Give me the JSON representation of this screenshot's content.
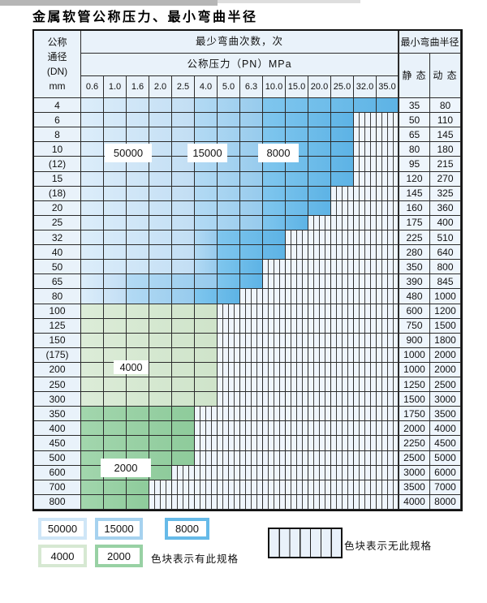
{
  "title": "金属软管公称压力、最小弯曲半径",
  "table": {
    "header": {
      "dn_label_lines": [
        "公称",
        "通径",
        "(DN)",
        "mm"
      ],
      "bend_times_label": "最少弯曲次数，次",
      "pressure_label": "公称压力（PN）MPa",
      "pressure_values": [
        "0.6",
        "1.0",
        "1.6",
        "2.0",
        "2.5",
        "4.0",
        "5.0",
        "6.3",
        "10.0",
        "15.0",
        "20.0",
        "25.0",
        "32.0",
        "35.0"
      ],
      "radius_label": "最小弯曲半径",
      "static_label": "静 态",
      "dynamic_label": "动 态"
    },
    "rows": [
      {
        "dn": "4",
        "st": "35",
        "dy": "80",
        "regions": [
          [
            "b5",
            5
          ],
          [
            "b15",
            3
          ],
          [
            "b8",
            6
          ]
        ]
      },
      {
        "dn": "6",
        "st": "50",
        "dy": "110",
        "regions": [
          [
            "b5",
            5
          ],
          [
            "b15",
            3
          ],
          [
            "b8",
            4
          ]
        ]
      },
      {
        "dn": "8",
        "st": "65",
        "dy": "145",
        "regions": [
          [
            "b5",
            5
          ],
          [
            "b15",
            3
          ],
          [
            "b8",
            4
          ]
        ]
      },
      {
        "dn": "10",
        "st": "80",
        "dy": "180",
        "regions": [
          [
            "b5",
            5
          ],
          [
            "b15",
            3
          ],
          [
            "b8",
            4
          ]
        ]
      },
      {
        "dn": "(12)",
        "st": "95",
        "dy": "215",
        "regions": [
          [
            "b5",
            5
          ],
          [
            "b15",
            3
          ],
          [
            "b8",
            4
          ]
        ]
      },
      {
        "dn": "15",
        "st": "120",
        "dy": "270",
        "regions": [
          [
            "b5",
            5
          ],
          [
            "b15",
            3
          ],
          [
            "b8",
            4
          ]
        ]
      },
      {
        "dn": "(18)",
        "st": "145",
        "dy": "325",
        "regions": [
          [
            "b5",
            5
          ],
          [
            "b15",
            3
          ],
          [
            "b8",
            3
          ]
        ]
      },
      {
        "dn": "20",
        "st": "160",
        "dy": "360",
        "regions": [
          [
            "b5",
            5
          ],
          [
            "b15",
            3
          ],
          [
            "b8",
            3
          ]
        ]
      },
      {
        "dn": "25",
        "st": "175",
        "dy": "400",
        "regions": [
          [
            "b5",
            5
          ],
          [
            "b15",
            3
          ],
          [
            "b8",
            2
          ]
        ]
      },
      {
        "dn": "32",
        "st": "225",
        "dy": "510",
        "regions": [
          [
            "b5",
            5
          ],
          [
            "b15",
            1
          ],
          [
            "b8",
            3
          ]
        ]
      },
      {
        "dn": "40",
        "st": "280",
        "dy": "640",
        "regions": [
          [
            "b5",
            5
          ],
          [
            "b15",
            1
          ],
          [
            "b8",
            3
          ]
        ]
      },
      {
        "dn": "50",
        "st": "350",
        "dy": "800",
        "regions": [
          [
            "b5",
            5
          ],
          [
            "b15",
            1
          ],
          [
            "b8",
            2
          ]
        ]
      },
      {
        "dn": "65",
        "st": "390",
        "dy": "845",
        "regions": [
          [
            "b5",
            2
          ],
          [
            "b15",
            4
          ],
          [
            "b8",
            2
          ]
        ]
      },
      {
        "dn": "80",
        "st": "480",
        "dy": "1000",
        "regions": [
          [
            "b5",
            2
          ],
          [
            "b15",
            3
          ],
          [
            "b8",
            2
          ]
        ]
      },
      {
        "dn": "100",
        "st": "600",
        "dy": "1200",
        "regions": [
          [
            "g4",
            6
          ]
        ]
      },
      {
        "dn": "125",
        "st": "750",
        "dy": "1500",
        "regions": [
          [
            "g4",
            6
          ]
        ]
      },
      {
        "dn": "150",
        "st": "900",
        "dy": "1800",
        "regions": [
          [
            "g4",
            6
          ]
        ]
      },
      {
        "dn": "(175)",
        "st": "1000",
        "dy": "2000",
        "regions": [
          [
            "g4",
            6
          ]
        ]
      },
      {
        "dn": "200",
        "st": "1000",
        "dy": "2000",
        "regions": [
          [
            "g4",
            6
          ]
        ]
      },
      {
        "dn": "250",
        "st": "1250",
        "dy": "2500",
        "regions": [
          [
            "g4",
            6
          ]
        ]
      },
      {
        "dn": "300",
        "st": "1500",
        "dy": "3000",
        "regions": [
          [
            "g4",
            6
          ]
        ]
      },
      {
        "dn": "350",
        "st": "1750",
        "dy": "3500",
        "regions": [
          [
            "g2",
            5
          ]
        ]
      },
      {
        "dn": "400",
        "st": "2000",
        "dy": "4000",
        "regions": [
          [
            "g2",
            5
          ]
        ]
      },
      {
        "dn": "450",
        "st": "2250",
        "dy": "4500",
        "regions": [
          [
            "g2",
            5
          ]
        ]
      },
      {
        "dn": "500",
        "st": "2500",
        "dy": "5000",
        "regions": [
          [
            "g2",
            5
          ]
        ]
      },
      {
        "dn": "600",
        "st": "3000",
        "dy": "6000",
        "regions": [
          [
            "g2",
            4
          ]
        ]
      },
      {
        "dn": "700",
        "st": "3500",
        "dy": "7000",
        "regions": [
          [
            "g2",
            3
          ]
        ]
      },
      {
        "dn": "800",
        "st": "4000",
        "dy": "8000",
        "regions": [
          [
            "g2",
            3
          ]
        ]
      }
    ]
  },
  "overlays": {
    "v50000": "50000",
    "v15000": "15000",
    "v8000": "8000",
    "v4000": "4000",
    "v2000": "2000"
  },
  "legend": {
    "items": [
      {
        "label": "50000",
        "color": "#cfe6f7"
      },
      {
        "label": "15000",
        "color": "#a6d2ef"
      },
      {
        "label": "8000",
        "color": "#66bae8"
      },
      {
        "label": "4000",
        "color": "#d6e8d2"
      },
      {
        "label": "2000",
        "color": "#98d1a4"
      }
    ],
    "has_spec_note": "色块表示有此规格",
    "no_spec_note": "色块表示无此规格"
  },
  "colors": {
    "blue_50000": "#cfe6f7",
    "blue_15000": "#a6d2ef",
    "blue_8000": "#6fbde9",
    "green_4000": "#d6e8d2",
    "green_2000": "#98d1a4",
    "striped_bg": "#eff5fc",
    "header_bg": "#e9f2fa",
    "grid_line": "#2b2b2b"
  }
}
